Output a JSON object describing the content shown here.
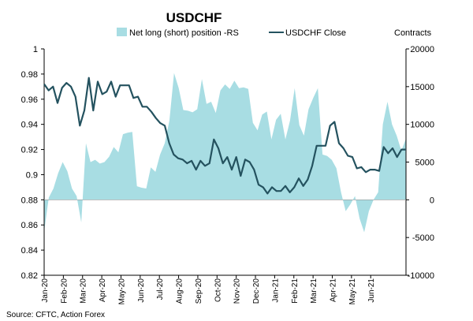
{
  "chart_data": {
    "type": "area+line",
    "title": "USDCHF",
    "legend": {
      "placement": "top",
      "entries": [
        {
          "name": "Net long (short) position -RS",
          "kind": "area",
          "color": "#a8dde3"
        },
        {
          "name": "USDCHF Close",
          "kind": "line",
          "color": "#24525f"
        }
      ]
    },
    "right_axis_title": "Contracts",
    "source": "Source: CFTC, Action Forex",
    "left_axis": {
      "min": 0.82,
      "max": 1.0,
      "ticks": [
        1,
        0.98,
        0.96,
        0.94,
        0.92,
        0.9,
        0.88,
        0.86,
        0.84,
        0.82
      ],
      "tick_labels": [
        "1",
        "0.98",
        "0.96",
        "0.94",
        "0.92",
        "0.9",
        "0.88",
        "0.86",
        "0.84",
        "0.82"
      ]
    },
    "right_axis": {
      "min": -10000,
      "max": 20000,
      "ticks": [
        20000,
        15000,
        10000,
        5000,
        0,
        -5000,
        -10000
      ],
      "tick_labels": [
        "20000",
        "15000",
        "10000",
        "5000",
        "0",
        "-5000",
        "-10000"
      ]
    },
    "x_labels": [
      "Jan-20",
      "Feb-20",
      "Mar-20",
      "Apr-20",
      "May-20",
      "Jun-20",
      "Jul-20",
      "Aug-20",
      "Sep-20",
      "Oct-20",
      "Nov-20",
      "Dec-20",
      "Jan-21",
      "Feb-21",
      "Mar-21",
      "Apr-21",
      "May-21",
      "Jun-21"
    ],
    "weeks_per_label": 4.3,
    "series": [
      {
        "name": "Net long (short) position -RS",
        "axis": "right",
        "values": [
          -4200,
          300,
          1500,
          3500,
          5000,
          3800,
          1500,
          500,
          -3000,
          7500,
          5000,
          5300,
          4800,
          5000,
          5700,
          7000,
          6300,
          8700,
          8900,
          9000,
          1800,
          1600,
          1500,
          4300,
          3700,
          6000,
          7500,
          10500,
          16800,
          14800,
          11900,
          11800,
          11600,
          12000,
          16000,
          12700,
          13000,
          11500,
          14500,
          15300,
          14700,
          15800,
          14800,
          14900,
          14700,
          10200,
          9200,
          11300,
          11700,
          8000,
          10600,
          11400,
          8000,
          10500,
          14800,
          9900,
          8500,
          12000,
          13500,
          14800,
          6000,
          5800,
          5300,
          4200,
          1000,
          -1500,
          -600,
          500,
          -2500,
          -4300,
          -1500,
          0,
          1000,
          10000,
          13000,
          10000,
          8500,
          6500,
          8100
        ]
      },
      {
        "name": "USDCHF Close",
        "axis": "left",
        "values": [
          0.972,
          0.967,
          0.97,
          0.957,
          0.969,
          0.973,
          0.97,
          0.962,
          0.939,
          0.951,
          0.977,
          0.951,
          0.974,
          0.964,
          0.966,
          0.974,
          0.962,
          0.971,
          0.971,
          0.971,
          0.961,
          0.962,
          0.954,
          0.954,
          0.95,
          0.945,
          0.941,
          0.939,
          0.925,
          0.916,
          0.913,
          0.912,
          0.909,
          0.911,
          0.904,
          0.911,
          0.907,
          0.909,
          0.928,
          0.921,
          0.909,
          0.914,
          0.904,
          0.914,
          0.899,
          0.912,
          0.91,
          0.904,
          0.892,
          0.89,
          0.885,
          0.89,
          0.887,
          0.887,
          0.891,
          0.886,
          0.89,
          0.897,
          0.891,
          0.896,
          0.907,
          0.923,
          0.923,
          0.923,
          0.939,
          0.942,
          0.925,
          0.921,
          0.915,
          0.914,
          0.905,
          0.906,
          0.902,
          0.904,
          0.904,
          0.903,
          0.922,
          0.917,
          0.921,
          0.914,
          0.92,
          0.92
        ]
      }
    ]
  }
}
